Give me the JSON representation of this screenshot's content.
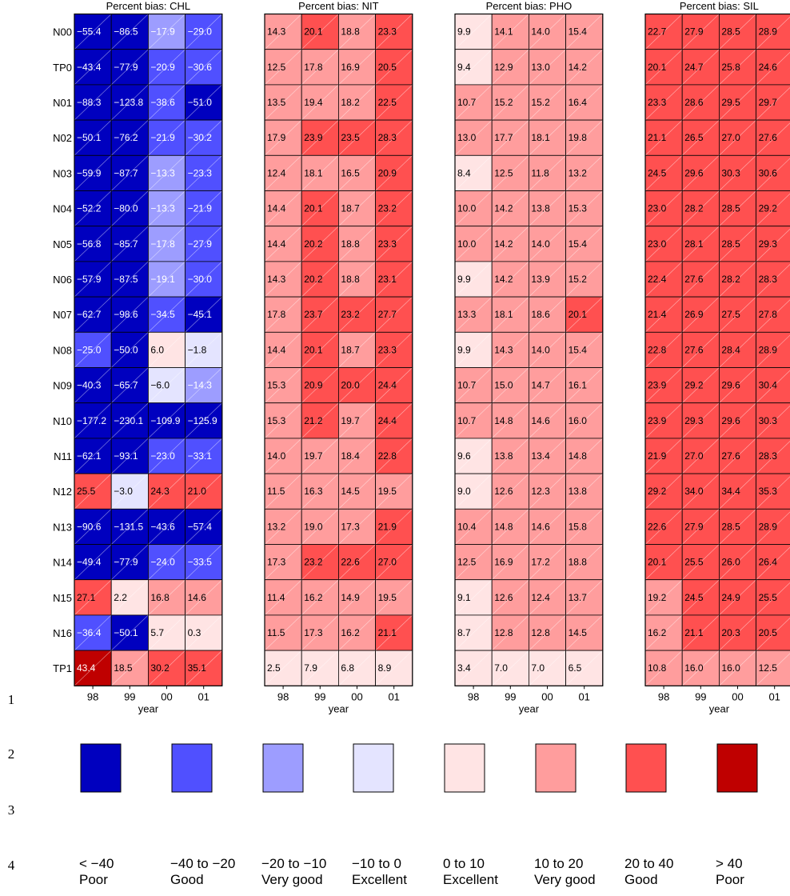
{
  "chart_data": {
    "type": "heatmap",
    "rows": [
      "N00",
      "TP0",
      "N01",
      "N02",
      "N03",
      "N04",
      "N05",
      "N06",
      "N07",
      "N08",
      "N09",
      "N10",
      "N11",
      "N12",
      "N13",
      "N14",
      "N15",
      "N16",
      "TP1"
    ],
    "columns": [
      "98",
      "99",
      "00",
      "01"
    ],
    "xlabel": "year",
    "line_numbers": [
      "1",
      "2",
      "3",
      "4"
    ],
    "panels": [
      {
        "title": "Percent bias: CHL",
        "values": [
          [
            -55.4,
            -86.5,
            -17.9,
            -29.0
          ],
          [
            -43.4,
            -77.9,
            -20.9,
            -30.6
          ],
          [
            -88.3,
            -123.8,
            -38.6,
            -51.0
          ],
          [
            -50.1,
            -76.2,
            -21.9,
            -30.2
          ],
          [
            -59.9,
            -87.7,
            -13.3,
            -23.3
          ],
          [
            -52.2,
            -80.0,
            -13.3,
            -21.9
          ],
          [
            -56.8,
            -85.7,
            -17.8,
            -27.9
          ],
          [
            -57.9,
            -87.5,
            -19.1,
            -30.0
          ],
          [
            -62.7,
            -98.6,
            -34.5,
            -45.1
          ],
          [
            -25.0,
            -50.0,
            6.0,
            -1.8
          ],
          [
            -40.3,
            -65.7,
            -6.0,
            -14.3
          ],
          [
            -177.2,
            -230.1,
            -109.9,
            -125.9
          ],
          [
            -62.1,
            -93.1,
            -23.0,
            -33.1
          ],
          [
            25.5,
            -3.0,
            24.3,
            21.0
          ],
          [
            -90.6,
            -131.5,
            -43.6,
            -57.4
          ],
          [
            -49.4,
            -77.9,
            -24.0,
            -33.5
          ],
          [
            27.1,
            2.2,
            16.8,
            14.6
          ],
          [
            -36.4,
            -50.1,
            5.7,
            0.3
          ],
          [
            43.4,
            18.5,
            30.2,
            35.1
          ]
        ]
      },
      {
        "title": "Percent bias: NIT",
        "values": [
          [
            14.3,
            20.1,
            18.8,
            23.3
          ],
          [
            12.5,
            17.8,
            16.9,
            20.5
          ],
          [
            13.5,
            19.4,
            18.2,
            22.5
          ],
          [
            17.9,
            23.9,
            23.5,
            28.3
          ],
          [
            12.4,
            18.1,
            16.5,
            20.9
          ],
          [
            14.4,
            20.1,
            18.7,
            23.2
          ],
          [
            14.4,
            20.2,
            18.8,
            23.3
          ],
          [
            14.3,
            20.2,
            18.8,
            23.1
          ],
          [
            17.8,
            23.7,
            23.2,
            27.7
          ],
          [
            14.4,
            20.1,
            18.7,
            23.3
          ],
          [
            15.3,
            20.9,
            20.0,
            24.4
          ],
          [
            15.3,
            21.2,
            19.7,
            24.4
          ],
          [
            14.0,
            19.7,
            18.4,
            22.8
          ],
          [
            11.5,
            16.3,
            14.5,
            19.5
          ],
          [
            13.2,
            19.0,
            17.3,
            21.9
          ],
          [
            17.3,
            23.2,
            22.6,
            27.0
          ],
          [
            11.4,
            16.2,
            14.9,
            19.5
          ],
          [
            11.5,
            17.3,
            16.2,
            21.1
          ],
          [
            2.5,
            7.9,
            6.8,
            8.9
          ]
        ]
      },
      {
        "title": "Percent bias: PHO",
        "values": [
          [
            9.9,
            14.1,
            14.0,
            15.4
          ],
          [
            9.4,
            12.9,
            13.0,
            14.2
          ],
          [
            10.7,
            15.2,
            15.2,
            16.4
          ],
          [
            13.0,
            17.7,
            18.1,
            19.8
          ],
          [
            8.4,
            12.5,
            11.8,
            13.2
          ],
          [
            10.0,
            14.2,
            13.8,
            15.3
          ],
          [
            10.0,
            14.2,
            14.0,
            15.4
          ],
          [
            9.9,
            14.2,
            13.9,
            15.2
          ],
          [
            13.3,
            18.1,
            18.6,
            20.1
          ],
          [
            9.9,
            14.3,
            14.0,
            15.4
          ],
          [
            10.7,
            15.0,
            14.7,
            16.1
          ],
          [
            10.7,
            14.8,
            14.6,
            16.0
          ],
          [
            9.6,
            13.8,
            13.4,
            14.8
          ],
          [
            9.0,
            12.6,
            12.3,
            13.8
          ],
          [
            10.4,
            14.8,
            14.6,
            15.8
          ],
          [
            12.5,
            16.9,
            17.2,
            18.8
          ],
          [
            9.1,
            12.6,
            12.4,
            13.7
          ],
          [
            8.7,
            12.8,
            12.8,
            14.5
          ],
          [
            3.4,
            7.0,
            7.0,
            6.5
          ]
        ]
      },
      {
        "title": "Percent bias: SIL",
        "values": [
          [
            22.7,
            27.9,
            28.5,
            28.9
          ],
          [
            20.1,
            24.7,
            25.8,
            24.6
          ],
          [
            23.3,
            28.6,
            29.5,
            29.7
          ],
          [
            21.1,
            26.5,
            27.0,
            27.6
          ],
          [
            24.5,
            29.6,
            30.3,
            30.6
          ],
          [
            23.0,
            28.2,
            28.5,
            29.2
          ],
          [
            23.0,
            28.1,
            28.5,
            29.3
          ],
          [
            22.4,
            27.6,
            28.2,
            28.3
          ],
          [
            21.4,
            26.9,
            27.5,
            27.8
          ],
          [
            22.8,
            27.6,
            28.4,
            28.9
          ],
          [
            23.9,
            29.2,
            29.6,
            30.4
          ],
          [
            23.9,
            29.3,
            29.6,
            30.3
          ],
          [
            21.9,
            27.0,
            27.6,
            28.3
          ],
          [
            29.2,
            34.0,
            34.4,
            35.3
          ],
          [
            22.6,
            27.9,
            28.5,
            28.9
          ],
          [
            20.1,
            25.5,
            26.0,
            26.4
          ],
          [
            19.2,
            24.5,
            24.9,
            25.5
          ],
          [
            16.2,
            21.1,
            20.3,
            20.5
          ],
          [
            10.8,
            16.0,
            16.0,
            12.5
          ]
        ]
      }
    ],
    "legend": [
      {
        "range": "< −40",
        "rating": "Poor",
        "color": "#0000bf"
      },
      {
        "range": "−40 to −20",
        "rating": "Good",
        "color": "#5050ff"
      },
      {
        "range": "−20 to −10",
        "rating": "Very good",
        "color": "#9d9dff"
      },
      {
        "range": "−10 to 0",
        "rating": "Excellent",
        "color": "#e4e4ff"
      },
      {
        "range": "0 to 10",
        "rating": "Excellent",
        "color": "#ffe4e4"
      },
      {
        "range": "10 to 20",
        "rating": "Very good",
        "color": "#ff9d9d"
      },
      {
        "range": "20 to 40",
        "rating": "Good",
        "color": "#ff5050"
      },
      {
        "range": "> 40",
        "rating": "Poor",
        "color": "#bf0000"
      }
    ],
    "thresholds": [
      -40,
      -20,
      -10,
      0,
      10,
      20,
      40
    ]
  }
}
